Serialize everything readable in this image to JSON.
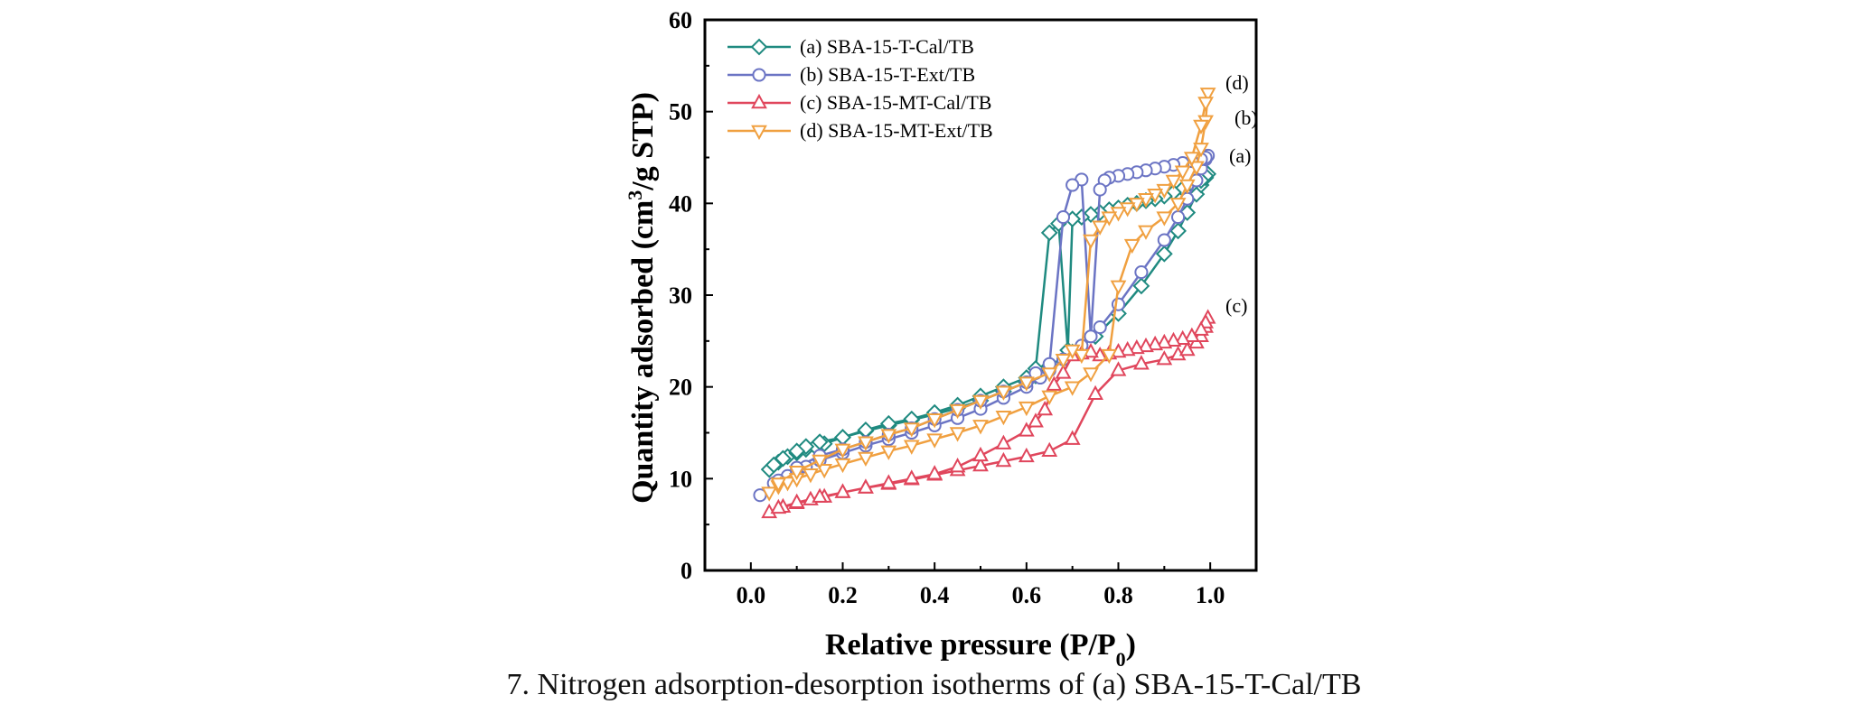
{
  "chart_data": {
    "type": "line",
    "xlabel": "Relative pressure (P/P0)",
    "ylabel": "Quantity adsorbed (cm3/g STP)",
    "xlim": [
      -0.1,
      1.1
    ],
    "ylim": [
      0,
      60
    ],
    "xticks": [
      0.0,
      0.2,
      0.4,
      0.6,
      0.8,
      1.0
    ],
    "xtick_labels": [
      "0.0",
      "0.2",
      "0.4",
      "0.6",
      "0.8",
      "1.0"
    ],
    "yticks": [
      0,
      10,
      20,
      30,
      40,
      50,
      60
    ],
    "ytick_labels": [
      "0",
      "10",
      "20",
      "30",
      "40",
      "50",
      "60"
    ],
    "legend_position": "top-left",
    "series": [
      {
        "name": "(a) SBA-15-T-Cal/TB",
        "end_label": "(a)",
        "color": "#1f8a80",
        "marker": "diamond",
        "x": [
          0.04,
          0.06,
          0.08,
          0.1,
          0.12,
          0.14,
          0.16,
          0.2,
          0.25,
          0.3,
          0.35,
          0.4,
          0.45,
          0.5,
          0.55,
          0.6,
          0.62,
          0.65,
          0.7,
          0.75,
          0.8,
          0.85,
          0.9,
          0.93,
          0.95,
          0.97,
          0.98,
          0.99,
          0.995,
          0.99,
          0.98,
          0.96,
          0.94,
          0.92,
          0.9,
          0.88,
          0.86,
          0.84,
          0.82,
          0.8,
          0.78,
          0.76,
          0.74,
          0.72,
          0.7,
          0.69,
          0.67,
          0.65,
          0.62,
          0.6,
          0.55,
          0.5,
          0.45,
          0.4,
          0.35,
          0.3,
          0.25,
          0.2,
          0.15,
          0.12,
          0.1,
          0.07,
          0.05
        ],
        "y": [
          11.0,
          11.8,
          12.4,
          12.8,
          13.2,
          13.5,
          13.8,
          14.5,
          15.2,
          15.8,
          16.4,
          17.0,
          17.7,
          18.5,
          19.5,
          20.5,
          21.2,
          22.3,
          23.8,
          25.5,
          28.0,
          31.0,
          34.5,
          37.0,
          39.0,
          41.0,
          42.0,
          42.8,
          43.2,
          43.0,
          42.5,
          42.0,
          41.6,
          41.2,
          40.8,
          40.5,
          40.3,
          40.0,
          39.8,
          39.5,
          39.3,
          39.0,
          38.8,
          38.5,
          38.3,
          24.0,
          37.8,
          36.8,
          22.0,
          21.0,
          20.0,
          19.0,
          18.0,
          17.2,
          16.5,
          16.0,
          15.3,
          14.5,
          14.0,
          13.5,
          13.0,
          12.2,
          11.5
        ]
      },
      {
        "name": "(b) SBA-15-T-Ext/TB",
        "end_label": "(b)",
        "color": "#6b74c4",
        "marker": "circle",
        "x": [
          0.02,
          0.05,
          0.08,
          0.1,
          0.12,
          0.15,
          0.2,
          0.25,
          0.3,
          0.35,
          0.4,
          0.45,
          0.5,
          0.55,
          0.6,
          0.63,
          0.65,
          0.68,
          0.72,
          0.76,
          0.8,
          0.85,
          0.9,
          0.93,
          0.95,
          0.97,
          0.98,
          0.99,
          0.995,
          0.99,
          0.98,
          0.96,
          0.94,
          0.92,
          0.9,
          0.88,
          0.86,
          0.84,
          0.82,
          0.8,
          0.78,
          0.77,
          0.76,
          0.74,
          0.72,
          0.7,
          0.68,
          0.65,
          0.62,
          0.6,
          0.55,
          0.5,
          0.45,
          0.4,
          0.35,
          0.3,
          0.25,
          0.2,
          0.15,
          0.1,
          0.06
        ],
        "y": [
          8.2,
          9.5,
          10.3,
          10.8,
          11.3,
          12.0,
          12.8,
          13.6,
          14.3,
          15.0,
          15.8,
          16.6,
          17.6,
          18.8,
          20.0,
          21.0,
          21.8,
          23.0,
          24.5,
          26.5,
          29.0,
          32.5,
          36.0,
          38.5,
          40.5,
          42.5,
          43.8,
          44.8,
          45.2,
          45.0,
          44.8,
          44.6,
          44.4,
          44.2,
          44.0,
          43.8,
          43.6,
          43.4,
          43.2,
          43.0,
          42.8,
          42.5,
          41.5,
          25.5,
          42.6,
          42.0,
          38.5,
          22.5,
          21.5,
          20.5,
          19.5,
          18.5,
          17.5,
          16.5,
          15.5,
          14.8,
          14.0,
          13.2,
          12.5,
          11.2,
          9.8
        ]
      },
      {
        "name": "(c) SBA-15-MT-Cal/TB",
        "end_label": "(c)",
        "color": "#e0465c",
        "marker": "triangle-up",
        "x": [
          0.04,
          0.07,
          0.1,
          0.13,
          0.16,
          0.2,
          0.25,
          0.3,
          0.35,
          0.4,
          0.45,
          0.5,
          0.55,
          0.6,
          0.65,
          0.7,
          0.75,
          0.8,
          0.85,
          0.9,
          0.93,
          0.95,
          0.97,
          0.98,
          0.99,
          0.995,
          0.99,
          0.98,
          0.96,
          0.94,
          0.92,
          0.9,
          0.88,
          0.86,
          0.84,
          0.82,
          0.8,
          0.78,
          0.76,
          0.74,
          0.72,
          0.7,
          0.68,
          0.66,
          0.64,
          0.62,
          0.6,
          0.55,
          0.5,
          0.45,
          0.4,
          0.35,
          0.3,
          0.25,
          0.2,
          0.15,
          0.1,
          0.06
        ],
        "y": [
          6.3,
          6.9,
          7.3,
          7.7,
          8.0,
          8.5,
          9.0,
          9.4,
          9.9,
          10.4,
          10.9,
          11.4,
          11.9,
          12.4,
          13.0,
          14.3,
          19.2,
          21.8,
          22.5,
          23.0,
          23.5,
          24.0,
          24.8,
          25.5,
          26.5,
          27.5,
          27.0,
          26.2,
          25.5,
          25.2,
          25.0,
          24.8,
          24.6,
          24.4,
          24.2,
          24.0,
          23.8,
          23.6,
          23.4,
          23.8,
          23.6,
          23.4,
          21.5,
          20.2,
          17.5,
          16.2,
          15.2,
          13.8,
          12.5,
          11.3,
          10.5,
          10.0,
          9.5,
          9.0,
          8.5,
          8.0,
          7.4,
          6.8
        ]
      },
      {
        "name": "(d) SBA-15-MT-Ext/TB",
        "end_label": "(d)",
        "color": "#f0a040",
        "marker": "triangle-down",
        "x": [
          0.04,
          0.06,
          0.08,
          0.1,
          0.13,
          0.16,
          0.2,
          0.25,
          0.3,
          0.35,
          0.4,
          0.45,
          0.5,
          0.55,
          0.6,
          0.65,
          0.7,
          0.74,
          0.78,
          0.8,
          0.83,
          0.86,
          0.9,
          0.93,
          0.95,
          0.97,
          0.98,
          0.99,
          0.995,
          0.99,
          0.98,
          0.96,
          0.94,
          0.92,
          0.9,
          0.88,
          0.86,
          0.84,
          0.82,
          0.8,
          0.78,
          0.76,
          0.74,
          0.72,
          0.7,
          0.68,
          0.65,
          0.6,
          0.55,
          0.5,
          0.45,
          0.4,
          0.35,
          0.3,
          0.25,
          0.2,
          0.15,
          0.1,
          0.06
        ],
        "y": [
          8.5,
          9.2,
          9.6,
          10.0,
          10.5,
          11.0,
          11.6,
          12.3,
          13.0,
          13.6,
          14.3,
          15.0,
          15.8,
          16.8,
          17.8,
          19.0,
          20.0,
          21.5,
          23.5,
          31.0,
          35.5,
          37.0,
          38.5,
          40.0,
          42.0,
          44.0,
          46.0,
          49.0,
          52.0,
          51.0,
          48.5,
          45.0,
          43.5,
          42.5,
          41.5,
          41.0,
          40.5,
          40.0,
          39.5,
          39.0,
          38.5,
          37.5,
          36.0,
          23.5,
          24.0,
          23.0,
          21.5,
          20.5,
          19.5,
          18.5,
          17.5,
          16.5,
          15.5,
          14.8,
          14.0,
          13.2,
          12.0,
          10.8,
          9.5
        ]
      }
    ]
  },
  "caption": "7. Nitrogen adsorption-desorption isotherms of (a) SBA-15-T-Cal/TB"
}
